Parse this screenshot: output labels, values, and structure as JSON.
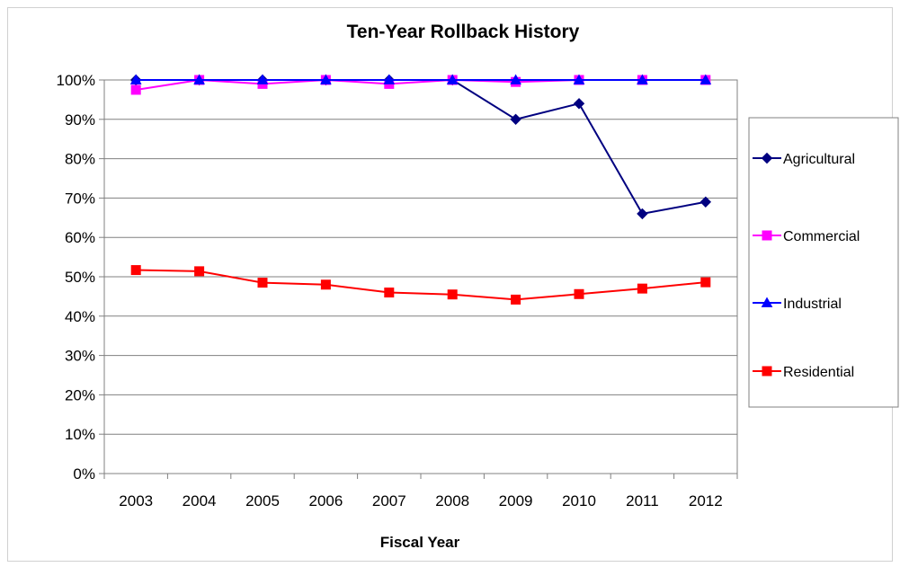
{
  "chart_data": {
    "type": "line",
    "title": "Ten-Year Rollback History",
    "xlabel": "Fiscal Year",
    "ylabel": "",
    "ylim": [
      0,
      100
    ],
    "y_tick_format": "percent",
    "y_ticks": [
      "0%",
      "10%",
      "20%",
      "30%",
      "40%",
      "50%",
      "60%",
      "70%",
      "80%",
      "90%",
      "100%"
    ],
    "categories": [
      "2003",
      "2004",
      "2005",
      "2006",
      "2007",
      "2008",
      "2009",
      "2010",
      "2011",
      "2012"
    ],
    "grid": "horizontal",
    "legend_position": "right",
    "series": [
      {
        "name": "Agricultural",
        "color": "#000080",
        "marker": "diamond",
        "values": [
          100,
          100,
          100,
          100,
          100,
          100,
          90,
          94,
          66,
          69
        ]
      },
      {
        "name": "Commercial",
        "color": "#ff00ff",
        "marker": "square",
        "values": [
          97.5,
          100,
          99,
          100,
          99,
          100,
          99.5,
          100,
          100,
          100
        ]
      },
      {
        "name": "Industrial",
        "color": "#0000ff",
        "marker": "triangle",
        "values": [
          100,
          100,
          100,
          100,
          100,
          100,
          100,
          100,
          100,
          100
        ]
      },
      {
        "name": "Residential",
        "color": "#ff0000",
        "marker": "square",
        "values": [
          51.7,
          51.4,
          48.5,
          48,
          46,
          45.5,
          44.2,
          45.6,
          47,
          48.6
        ]
      }
    ]
  }
}
